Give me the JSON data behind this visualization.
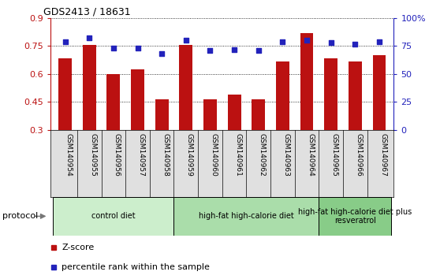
{
  "title": "GDS2413 / 18631",
  "samples": [
    "GSM140954",
    "GSM140955",
    "GSM140956",
    "GSM140957",
    "GSM140958",
    "GSM140959",
    "GSM140960",
    "GSM140961",
    "GSM140962",
    "GSM140963",
    "GSM140964",
    "GSM140965",
    "GSM140966",
    "GSM140967"
  ],
  "zscore": [
    0.685,
    0.755,
    0.6,
    0.625,
    0.465,
    0.755,
    0.465,
    0.49,
    0.462,
    0.665,
    0.82,
    0.685,
    0.665,
    0.7
  ],
  "percentile": [
    79,
    82,
    73,
    73,
    68,
    80,
    71,
    72,
    71,
    79,
    80,
    78,
    77,
    79
  ],
  "bar_color": "#BB1111",
  "dot_color": "#2222BB",
  "ylim_left": [
    0.3,
    0.9
  ],
  "ylim_right": [
    0,
    100
  ],
  "yticks_left": [
    0.3,
    0.45,
    0.6,
    0.75,
    0.9
  ],
  "yticks_right": [
    0,
    25,
    50,
    75,
    100
  ],
  "ytick_labels_left": [
    "0.3",
    "0.45",
    "0.6",
    "0.75",
    "0.9"
  ],
  "ytick_labels_right": [
    "0",
    "25",
    "50",
    "75",
    "100%"
  ],
  "groups": [
    {
      "label": "control diet",
      "start": 0,
      "end": 5,
      "color": "#cceecc"
    },
    {
      "label": "high-fat high-calorie diet",
      "start": 5,
      "end": 11,
      "color": "#aaddaa"
    },
    {
      "label": "high-fat high-calorie diet plus\nresveratrol",
      "start": 11,
      "end": 14,
      "color": "#88cc88"
    }
  ],
  "legend_zscore_label": "Z-score",
  "legend_pct_label": "percentile rank within the sample",
  "protocol_label": "protocol"
}
